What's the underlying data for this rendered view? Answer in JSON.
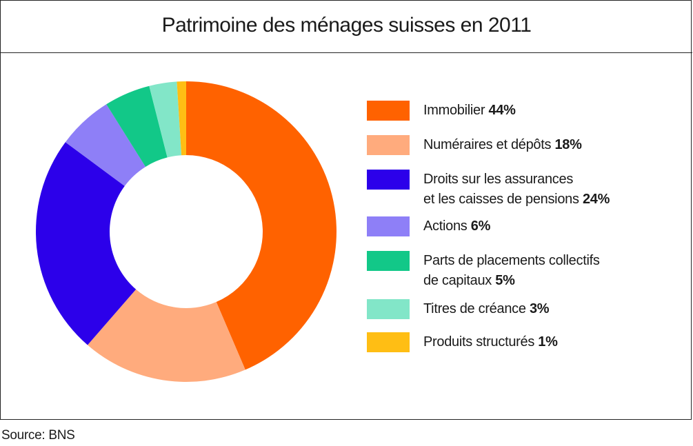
{
  "chart_data": {
    "type": "pie",
    "donut": true,
    "title": "Patrimoine des ménages suisses en 2011",
    "legend_position": "right",
    "slices": [
      {
        "label_lines": [
          "Immobilier"
        ],
        "value": 44,
        "value_label": "44%",
        "color": "#ff6200"
      },
      {
        "label_lines": [
          "Numéraires et dépôts"
        ],
        "value": 18,
        "value_label": "18%",
        "color": "#ffab7d"
      },
      {
        "label_lines": [
          "Droits sur les assurances",
          "et les caisses de pensions"
        ],
        "value": 24,
        "value_label": "24%",
        "color": "#2c00ea"
      },
      {
        "label_lines": [
          "Actions"
        ],
        "value": 6,
        "value_label": "6%",
        "color": "#8e7ff7"
      },
      {
        "label_lines": [
          "Parts de placements collectifs",
          "de capitaux"
        ],
        "value": 5,
        "value_label": "5%",
        "color": "#12c888"
      },
      {
        "label_lines": [
          "Titres de créance"
        ],
        "value": 3,
        "value_label": "3%",
        "color": "#82e6c8"
      },
      {
        "label_lines": [
          "Produits structurés"
        ],
        "value": 1,
        "value_label": "1%",
        "color": "#ffbe14"
      }
    ]
  },
  "source": "Source: BNS"
}
